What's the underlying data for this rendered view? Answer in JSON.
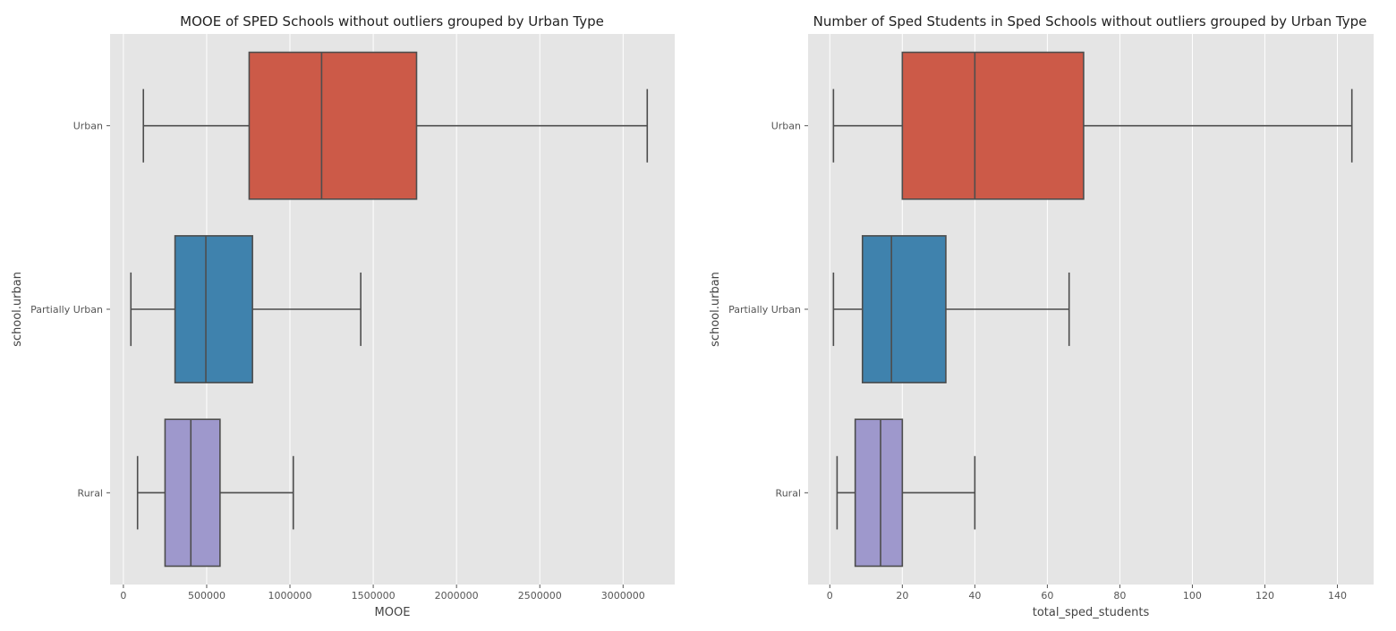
{
  "chart_data": [
    {
      "type": "box",
      "orientation": "horizontal",
      "title": "MOOE of SPED Schools without outliers grouped by Urban Type",
      "xlabel": "MOOE",
      "ylabel": "school.urban",
      "xlim": [
        -80000,
        3310000
      ],
      "xticks": [
        0,
        500000,
        1000000,
        1500000,
        2000000,
        2500000,
        3000000
      ],
      "xtick_labels": [
        "0",
        "500000",
        "1000000",
        "1500000",
        "2000000",
        "2500000",
        "3000000"
      ],
      "grid": true,
      "categories": [
        "Urban",
        "Partially Urban",
        "Rural"
      ],
      "boxes": [
        {
          "category": "Urban",
          "whisker_low": 120000,
          "q1": 755000,
          "median": 1190000,
          "q3": 1760000,
          "whisker_high": 3145000,
          "color": "#cc5a48"
        },
        {
          "category": "Partially Urban",
          "whisker_low": 45000,
          "q1": 310000,
          "median": 495000,
          "q3": 775000,
          "whisker_high": 1425000,
          "color": "#3f82ad"
        },
        {
          "category": "Rural",
          "whisker_low": 85000,
          "q1": 250000,
          "median": 405000,
          "q3": 580000,
          "whisker_high": 1020000,
          "color": "#9e98cc"
        }
      ]
    },
    {
      "type": "box",
      "orientation": "horizontal",
      "title": "Number of Sped Students in Sped Schools without outliers grouped by Urban Type",
      "xlabel": "total_sped_students",
      "ylabel": "school.urban",
      "xlim": [
        -6,
        150
      ],
      "xticks": [
        0,
        20,
        40,
        60,
        80,
        100,
        120,
        140
      ],
      "xtick_labels": [
        "0",
        "20",
        "40",
        "60",
        "80",
        "100",
        "120",
        "140"
      ],
      "grid": true,
      "categories": [
        "Urban",
        "Partially Urban",
        "Rural"
      ],
      "boxes": [
        {
          "category": "Urban",
          "whisker_low": 1,
          "q1": 20,
          "median": 40,
          "q3": 70,
          "whisker_high": 144,
          "color": "#cc5a48"
        },
        {
          "category": "Partially Urban",
          "whisker_low": 1,
          "q1": 9,
          "median": 17,
          "q3": 32,
          "whisker_high": 66,
          "color": "#3f82ad"
        },
        {
          "category": "Rural",
          "whisker_low": 2,
          "q1": 7,
          "median": 14,
          "q3": 20,
          "whisker_high": 40,
          "color": "#9e98cc"
        }
      ]
    }
  ]
}
